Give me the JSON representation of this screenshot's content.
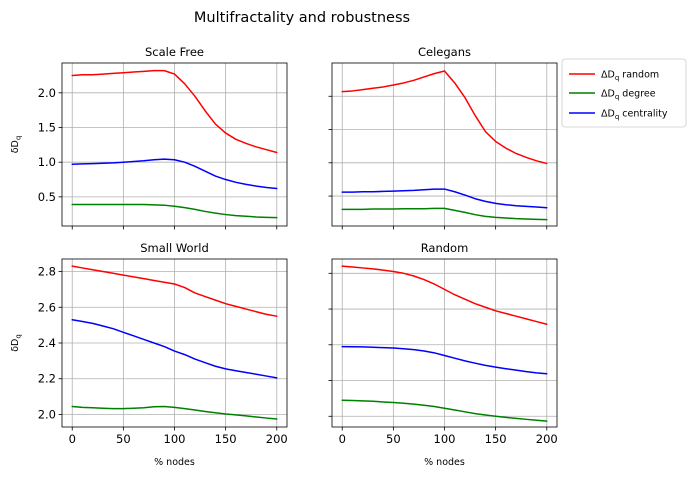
{
  "figure": {
    "title": "Multifractality and robustness"
  },
  "legend": {
    "entries": [
      {
        "prefix": "ΔD",
        "sub": "q",
        "label": " random",
        "color": "#ff0000"
      },
      {
        "prefix": "ΔD",
        "sub": "q",
        "label": " degree",
        "color": "#008000"
      },
      {
        "prefix": "ΔD",
        "sub": "q",
        "label": " centrality",
        "color": "#0000ff"
      }
    ]
  },
  "chart_data": [
    {
      "type": "line",
      "title": "Scale Free",
      "xlabel": "",
      "ylabel": {
        "main": "δD",
        "sub": "q"
      },
      "xlim": [
        -10,
        210
      ],
      "ylim": [
        0.08,
        2.43
      ],
      "xticks": [
        0,
        50,
        100,
        150,
        200
      ],
      "yticks": [
        0.5,
        1.0,
        1.5,
        2.0
      ],
      "ytick_labels": [
        "0.5",
        "1.0",
        "1.5",
        "2.0"
      ],
      "show_xtick_labels": false,
      "show_ytick_labels": true,
      "grid": true,
      "x": [
        0,
        10,
        20,
        30,
        40,
        50,
        60,
        70,
        80,
        90,
        100,
        110,
        120,
        130,
        140,
        150,
        160,
        170,
        180,
        190,
        200
      ],
      "series": [
        {
          "color": "#ff0000",
          "values": [
            2.25,
            2.26,
            2.26,
            2.27,
            2.28,
            2.29,
            2.3,
            2.31,
            2.32,
            2.32,
            2.27,
            2.13,
            1.95,
            1.74,
            1.55,
            1.42,
            1.33,
            1.27,
            1.22,
            1.18,
            1.14
          ]
        },
        {
          "color": "#008000",
          "values": [
            0.39,
            0.39,
            0.39,
            0.39,
            0.39,
            0.39,
            0.39,
            0.39,
            0.385,
            0.38,
            0.365,
            0.345,
            0.32,
            0.29,
            0.265,
            0.245,
            0.23,
            0.22,
            0.21,
            0.205,
            0.2
          ]
        },
        {
          "color": "#0000ff",
          "values": [
            0.97,
            0.975,
            0.98,
            0.985,
            0.99,
            1.0,
            1.01,
            1.02,
            1.035,
            1.045,
            1.035,
            1.0,
            0.94,
            0.87,
            0.8,
            0.75,
            0.71,
            0.68,
            0.655,
            0.635,
            0.62
          ]
        }
      ]
    },
    {
      "type": "line",
      "title": "Celegans",
      "xlabel": "",
      "ylabel": {
        "main": "",
        "sub": ""
      },
      "xlim": [
        -10,
        210
      ],
      "ylim": [
        0.05,
        2.5
      ],
      "xticks": [
        0,
        50,
        100,
        150,
        200
      ],
      "yticks": [
        0.5,
        1.0,
        1.5,
        2.0
      ],
      "ytick_labels": [
        "0.5",
        "1.0",
        "1.5",
        "2.0"
      ],
      "show_xtick_labels": false,
      "show_ytick_labels": false,
      "grid": true,
      "x": [
        0,
        10,
        20,
        30,
        40,
        50,
        60,
        70,
        80,
        90,
        100,
        110,
        120,
        130,
        140,
        150,
        160,
        170,
        180,
        190,
        200
      ],
      "series": [
        {
          "color": "#ff0000",
          "values": [
            2.07,
            2.08,
            2.1,
            2.12,
            2.14,
            2.17,
            2.2,
            2.24,
            2.29,
            2.34,
            2.38,
            2.2,
            1.98,
            1.71,
            1.47,
            1.32,
            1.22,
            1.14,
            1.08,
            1.03,
            0.99
          ]
        },
        {
          "color": "#008000",
          "values": [
            0.3,
            0.3,
            0.3,
            0.305,
            0.305,
            0.305,
            0.31,
            0.31,
            0.31,
            0.315,
            0.315,
            0.285,
            0.255,
            0.22,
            0.195,
            0.18,
            0.17,
            0.16,
            0.155,
            0.15,
            0.145
          ]
        },
        {
          "color": "#0000ff",
          "values": [
            0.56,
            0.56,
            0.565,
            0.565,
            0.57,
            0.575,
            0.58,
            0.585,
            0.595,
            0.605,
            0.605,
            0.565,
            0.515,
            0.46,
            0.42,
            0.39,
            0.37,
            0.355,
            0.345,
            0.335,
            0.325
          ]
        }
      ]
    },
    {
      "type": "line",
      "title": "Small World",
      "xlabel": "% nodes",
      "ylabel": {
        "main": "δD",
        "sub": "q"
      },
      "xlim": [
        -10,
        210
      ],
      "ylim": [
        1.93,
        2.87
      ],
      "xticks": [
        0,
        50,
        100,
        150,
        200
      ],
      "yticks": [
        2.0,
        2.2,
        2.4,
        2.6,
        2.8
      ],
      "ytick_labels": [
        "2.0",
        "2.2",
        "2.4",
        "2.6",
        "2.8"
      ],
      "show_xtick_labels": true,
      "show_ytick_labels": true,
      "grid": true,
      "x": [
        0,
        10,
        20,
        30,
        40,
        50,
        60,
        70,
        80,
        90,
        100,
        110,
        120,
        130,
        140,
        150,
        160,
        170,
        180,
        190,
        200
      ],
      "series": [
        {
          "color": "#ff0000",
          "values": [
            2.83,
            2.82,
            2.81,
            2.8,
            2.79,
            2.78,
            2.77,
            2.76,
            2.75,
            2.74,
            2.73,
            2.71,
            2.68,
            2.66,
            2.64,
            2.62,
            2.605,
            2.59,
            2.575,
            2.56,
            2.55
          ]
        },
        {
          "color": "#008000",
          "values": [
            2.045,
            2.04,
            2.038,
            2.035,
            2.033,
            2.033,
            2.035,
            2.038,
            2.043,
            2.045,
            2.04,
            2.033,
            2.025,
            2.017,
            2.01,
            2.003,
            1.998,
            1.992,
            1.986,
            1.98,
            1.975
          ]
        },
        {
          "color": "#0000ff",
          "values": [
            2.53,
            2.52,
            2.51,
            2.495,
            2.48,
            2.46,
            2.44,
            2.42,
            2.4,
            2.38,
            2.355,
            2.335,
            2.31,
            2.29,
            2.27,
            2.255,
            2.245,
            2.235,
            2.225,
            2.215,
            2.205
          ]
        }
      ]
    },
    {
      "type": "line",
      "title": "Random",
      "xlabel": "% nodes",
      "ylabel": {
        "main": "",
        "sub": ""
      },
      "xlim": [
        -10,
        210
      ],
      "ylim": [
        1.94,
        2.88
      ],
      "xticks": [
        0,
        50,
        100,
        150,
        200
      ],
      "yticks": [
        2.0,
        2.2,
        2.4,
        2.6,
        2.8
      ],
      "ytick_labels": [
        "2.0",
        "2.2",
        "2.4",
        "2.6",
        "2.8"
      ],
      "show_xtick_labels": true,
      "show_ytick_labels": false,
      "grid": true,
      "x": [
        0,
        10,
        20,
        30,
        40,
        50,
        60,
        70,
        80,
        90,
        100,
        110,
        120,
        130,
        140,
        150,
        160,
        170,
        180,
        190,
        200
      ],
      "series": [
        {
          "color": "#ff0000",
          "values": [
            2.84,
            2.835,
            2.83,
            2.825,
            2.818,
            2.81,
            2.8,
            2.785,
            2.765,
            2.74,
            2.71,
            2.68,
            2.655,
            2.63,
            2.61,
            2.59,
            2.575,
            2.56,
            2.545,
            2.53,
            2.515
          ]
        },
        {
          "color": "#008000",
          "values": [
            2.09,
            2.088,
            2.086,
            2.084,
            2.08,
            2.077,
            2.073,
            2.068,
            2.062,
            2.055,
            2.045,
            2.035,
            2.025,
            2.015,
            2.007,
            2.0,
            1.994,
            1.988,
            1.983,
            1.978,
            1.973
          ]
        },
        {
          "color": "#0000ff",
          "values": [
            2.39,
            2.389,
            2.388,
            2.386,
            2.384,
            2.382,
            2.378,
            2.373,
            2.365,
            2.355,
            2.34,
            2.325,
            2.31,
            2.297,
            2.285,
            2.275,
            2.266,
            2.258,
            2.25,
            2.243,
            2.238
          ]
        }
      ]
    }
  ]
}
